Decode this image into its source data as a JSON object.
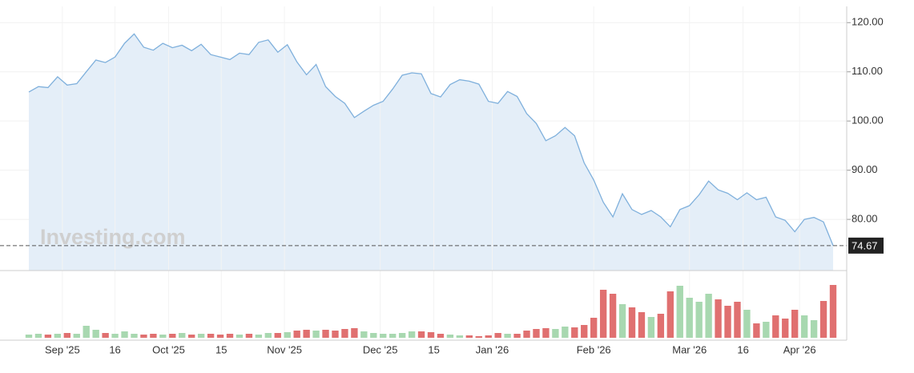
{
  "chart_data": [
    {
      "type": "area",
      "watermark": "Investing.com",
      "color": "#7fb0dc",
      "fill": "#e4eef8",
      "values": [
        105.9,
        107,
        106.8,
        109,
        107.3,
        107.6,
        110,
        112.4,
        111.9,
        113,
        115.8,
        117.7,
        115,
        114.4,
        115.8,
        114.9,
        115.4,
        114.3,
        115.6,
        113.5,
        113,
        112.5,
        113.8,
        113.5,
        116,
        116.5,
        114,
        115.5,
        112,
        109.4,
        111.5,
        107,
        105,
        103.6,
        100.7,
        102,
        103.2,
        104,
        106.5,
        109.3,
        109.8,
        109.6,
        105.6,
        104.9,
        107.4,
        108.4,
        108.1,
        107.5,
        104,
        103.6,
        106,
        105,
        101.5,
        99.5,
        96,
        97,
        98.7,
        97,
        91.5,
        88,
        83.5,
        80.5,
        85.2,
        82,
        81,
        81.8,
        80.5,
        78.5,
        82,
        82.8,
        85,
        87.8,
        86,
        85.3,
        84,
        85.4,
        84,
        84.5,
        80.5,
        79.8,
        77.5,
        80,
        80.4,
        79.5,
        74.67
      ],
      "xlim": [
        0,
        84
      ],
      "ylim": [
        69.6,
        123.3
      ],
      "yticks": [
        {
          "value": 80,
          "label": "80.00"
        },
        {
          "value": 90,
          "label": "90.00"
        },
        {
          "value": 100,
          "label": "100.00"
        },
        {
          "value": 110,
          "label": "110.00"
        },
        {
          "value": 120,
          "label": "120.00"
        }
      ],
      "grid": true
    },
    {
      "type": "volume",
      "up_color": "#a8d8b0",
      "down_color": "#e07070",
      "values": [
        4,
        5,
        4,
        5,
        6,
        5,
        15,
        10,
        6,
        5,
        8,
        5,
        4,
        5,
        4,
        5,
        6,
        4,
        5,
        5,
        4,
        5,
        4,
        5,
        4,
        6,
        6,
        7,
        9,
        10,
        9,
        10,
        9,
        11,
        12,
        8,
        6,
        5,
        5,
        6,
        8,
        8,
        7,
        5,
        4,
        3,
        3,
        2,
        3,
        6,
        5,
        5,
        9,
        11,
        12,
        11,
        14,
        13,
        16,
        25,
        60,
        55,
        42,
        38,
        32,
        26,
        30,
        58,
        65,
        50,
        45,
        55,
        48,
        40,
        45,
        35,
        18,
        20,
        28,
        24,
        35,
        28,
        22,
        46,
        66
      ],
      "xlim": [
        0,
        84
      ],
      "ylim": [
        0,
        75
      ],
      "xticks": [
        {
          "value": 3.5,
          "label": "Sep '25"
        },
        {
          "value": 9,
          "label": "16"
        },
        {
          "value": 14.6,
          "label": "Oct '25"
        },
        {
          "value": 20.1,
          "label": "15"
        },
        {
          "value": 26.7,
          "label": "Nov '25"
        },
        {
          "value": 36.7,
          "label": "Dec '25"
        },
        {
          "value": 42.3,
          "label": "15"
        },
        {
          "value": 48.4,
          "label": "Jan '26"
        },
        {
          "value": 59,
          "label": "Feb '26"
        },
        {
          "value": 69,
          "label": "Mar '26"
        },
        {
          "value": 74.6,
          "label": "16"
        },
        {
          "value": 80.5,
          "label": "Apr '26"
        }
      ]
    }
  ]
}
